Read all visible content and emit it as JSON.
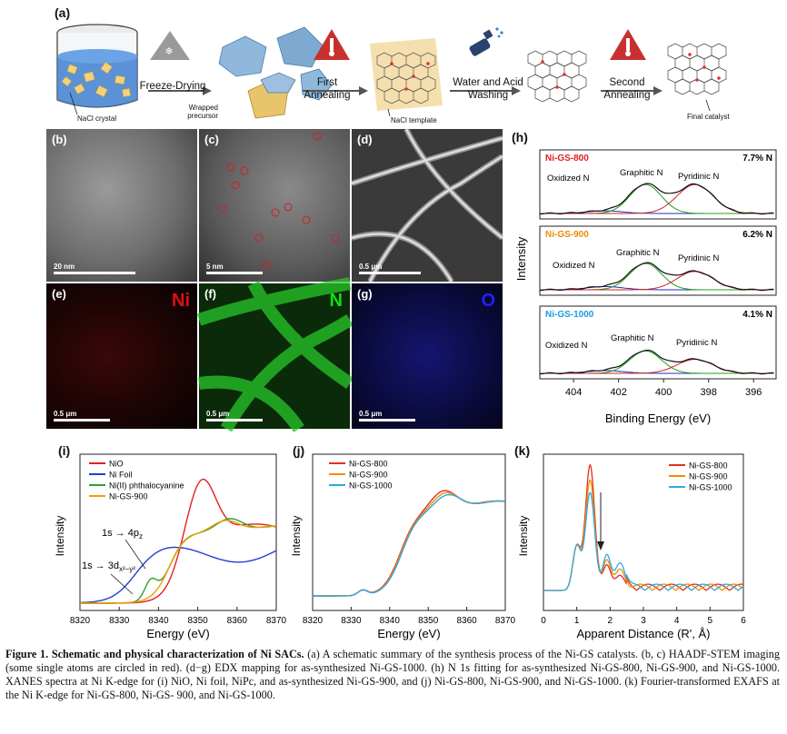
{
  "panel_a": {
    "label": "(a)",
    "steps": {
      "freeze_drying": "Freeze-Drying",
      "first_annealing": [
        "First",
        "Annealing"
      ],
      "washing": [
        "Water and Acid",
        "Washing"
      ],
      "second_annealing": [
        "Second",
        "Annealing"
      ]
    },
    "annotations": {
      "nacl_crystal": "NaCl crystal",
      "wrapped_precursor": [
        "Wrapped",
        "precursor"
      ],
      "nacl_template": "NaCl template",
      "final_catalyst": "Final catalyst"
    }
  },
  "images": {
    "b": {
      "label": "(b)",
      "scale": "20 nm"
    },
    "c": {
      "label": "(c)",
      "scale": "5 nm"
    },
    "d": {
      "label": "(d)",
      "scale": "0.5 μm"
    },
    "e": {
      "label": "(e)",
      "scale": "0.5 μm",
      "element": "Ni",
      "color": "#e01010"
    },
    "f": {
      "label": "(f)",
      "scale": "0.5 μm",
      "element": "N",
      "color": "#10e010"
    },
    "g": {
      "label": "(g)",
      "scale": "0.5 μm",
      "element": "O",
      "color": "#2020ff"
    }
  },
  "panel_h": {
    "label": "(h)",
    "ylabel": "Intensity",
    "xlabel": "Binding Energy (eV)",
    "xticks": [
      "404",
      "402",
      "400",
      "398",
      "396"
    ],
    "subpanels": [
      {
        "name": "Ni-GS-800",
        "color": "#e02020",
        "percent": "7.7% N",
        "peaks": [
          "Oxidized N",
          "Graphitic N",
          "Pyridinic N"
        ]
      },
      {
        "name": "Ni-GS-900",
        "color": "#f08a00",
        "percent": "6.2% N",
        "peaks": [
          "Oxidized N",
          "Graphitic N",
          "Pyridinic N"
        ]
      },
      {
        "name": "Ni-GS-1000",
        "color": "#1e9be0",
        "percent": "4.1% N",
        "peaks": [
          "Oxidized N",
          "Graphitic N",
          "Pyridinic N"
        ]
      }
    ]
  },
  "panel_i": {
    "label": "(i)",
    "ylabel": "Intensity",
    "xlabel": "Energy (eV)",
    "xticks": [
      "8320",
      "8330",
      "8340",
      "8350",
      "8360",
      "8370"
    ],
    "legend": [
      {
        "name": "NiO",
        "color": "#e02020"
      },
      {
        "name": "Ni Foil",
        "color": "#2040d0"
      },
      {
        "name": "Ni(II) phthalocyanine",
        "color": "#30a030"
      },
      {
        "name": "Ni-GS-900",
        "color": "#f0a000"
      }
    ],
    "annotations": [
      "1s → 4p",
      "z",
      "1s → 3d",
      "x²−y²"
    ]
  },
  "panel_j": {
    "label": "(j)",
    "ylabel": "Intensity",
    "xlabel": "Energy (eV)",
    "xticks": [
      "8320",
      "8330",
      "8340",
      "8350",
      "8360",
      "8370"
    ],
    "legend": [
      {
        "name": "Ni-GS-800",
        "color": "#e03020"
      },
      {
        "name": "Ni-GS-900",
        "color": "#f09000"
      },
      {
        "name": "Ni-GS-1000",
        "color": "#30a8e0"
      }
    ]
  },
  "panel_k": {
    "label": "(k)",
    "ylabel": "Intensity",
    "xlabel": "Apparent Distance (R', Å)",
    "xticks": [
      "0",
      "1",
      "2",
      "3",
      "4",
      "5",
      "6"
    ],
    "legend": [
      {
        "name": "Ni-GS-800",
        "color": "#e03020"
      },
      {
        "name": "Ni-GS-900",
        "color": "#f09000"
      },
      {
        "name": "Ni-GS-1000",
        "color": "#30a8e0"
      }
    ]
  },
  "caption": {
    "bold": "Figure 1. Schematic and physical characterization of Ni SACs.",
    "text": " (a) A schematic summary of the synthesis process of the Ni-GS catalysts. (b, c) HAADF-STEM imaging (some single atoms are circled in red). (d−g) EDX mapping for as-synthesized Ni-GS-1000. (h) N 1s fitting for as-synthesized Ni-GS-800, Ni-GS-900, and Ni-GS-1000. XANES spectra at Ni K-edge for (i) NiO, Ni foil, NiPc, and as-synthesized Ni-GS-900, and (j) Ni-GS-800, Ni-GS-900, and Ni-GS-1000. (k) Fourier-transformed EXAFS at the Ni K-edge for Ni-GS-800, Ni-GS- 900, and Ni-GS-1000."
  }
}
